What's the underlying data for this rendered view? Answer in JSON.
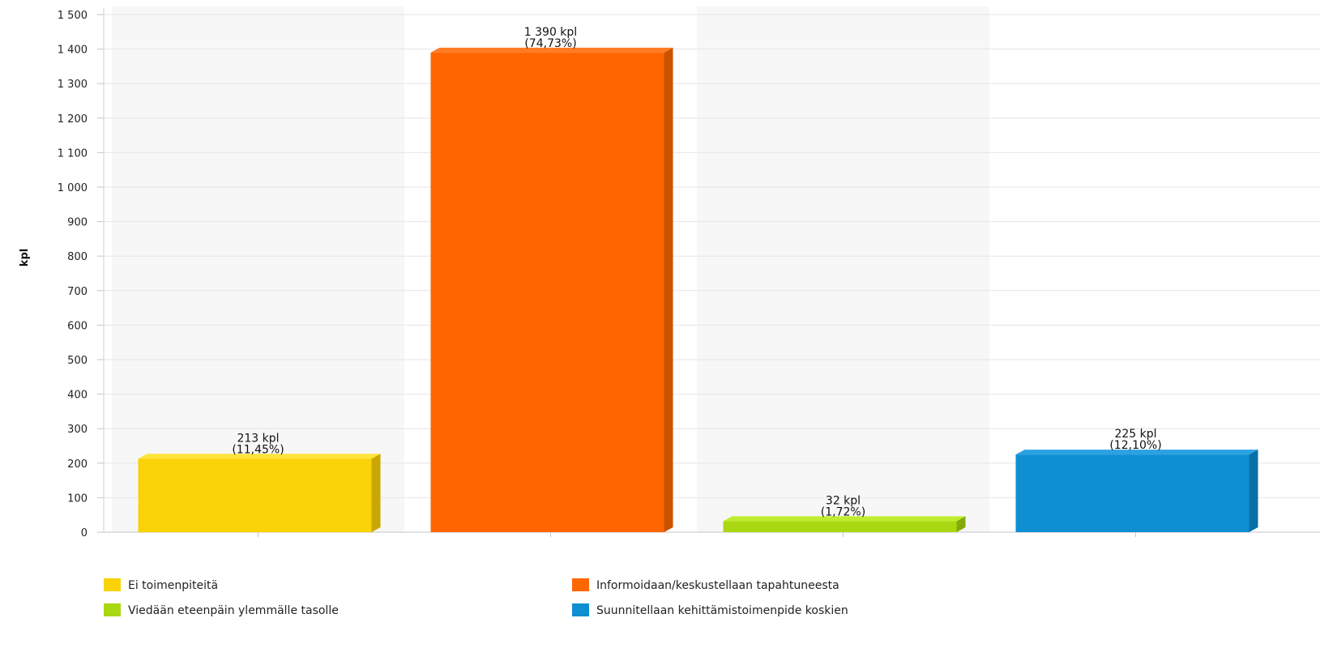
{
  "chart_data": {
    "type": "bar",
    "title": "",
    "xlabel": "",
    "ylabel": "kpl",
    "ylim": [
      0,
      1500
    ],
    "yticks": [
      0,
      100,
      200,
      300,
      400,
      500,
      600,
      700,
      800,
      900,
      1000,
      1100,
      1200,
      1300,
      1400,
      1500
    ],
    "ytick_labels": [
      "0",
      "100",
      "200",
      "300",
      "400",
      "500",
      "600",
      "700",
      "800",
      "900",
      "1 000",
      "1 100",
      "1 200",
      "1 300",
      "1 400",
      "1 500"
    ],
    "grid": true,
    "legend_position": "bottom",
    "categories": [
      "Ei toimenpiteitä",
      "Informoidaan/keskustellaan tapahtuneesta",
      "Viedään eteenpäin ylemmälle tasolle",
      "Suunnitellaan kehittämistoimenpide koskien"
    ],
    "values": [
      213,
      1390,
      32,
      225
    ],
    "value_labels": [
      "213 kpl",
      "1 390 kpl",
      "32 kpl",
      "225 kpl"
    ],
    "percent_labels": [
      "(11,45%)",
      "(74,73%)",
      "(1,72%)",
      "(12,10%)"
    ],
    "colors": [
      "#f9d307",
      "#ff6600",
      "#a9d813",
      "#0e8fd2"
    ],
    "side_colors": [
      "#c9a600",
      "#cc5200",
      "#84aa0c",
      "#0a6fa6"
    ],
    "top_colors": [
      "#fde43a",
      "#ff7a22",
      "#c1ec2e",
      "#2aa2e2"
    ]
  }
}
